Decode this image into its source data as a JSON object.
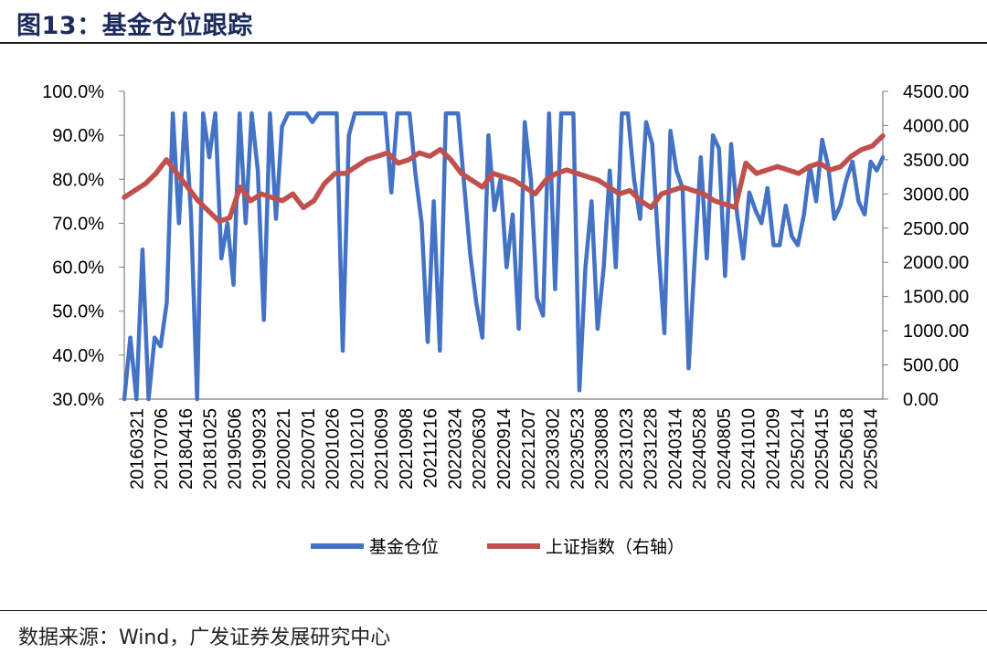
{
  "header": {
    "title": "图13：基金仓位跟踪"
  },
  "footer": {
    "source": "数据来源：Wind，广发证券发展研究中心"
  },
  "chart_data": {
    "type": "line",
    "title": "",
    "xlabel": "",
    "ylabel": "",
    "y_left": {
      "ylim": [
        0.3,
        1.0
      ],
      "ticks": [
        0.3,
        0.4,
        0.5,
        0.6,
        0.7,
        0.8,
        0.9,
        1.0
      ],
      "tick_labels": [
        "30.0%",
        "40.0%",
        "50.0%",
        "60.0%",
        "70.0%",
        "80.0%",
        "90.0%",
        "100.0%"
      ]
    },
    "y_right": {
      "ylim": [
        0,
        4500
      ],
      "ticks": [
        0,
        500,
        1000,
        1500,
        2000,
        2500,
        3000,
        3500,
        4000,
        4500
      ],
      "tick_labels": [
        "0.00",
        "500.00",
        "1000.00",
        "1500.00",
        "2000.00",
        "2500.00",
        "3000.00",
        "3500.00",
        "4000.00",
        "4500.00"
      ]
    },
    "x_tick_labels": [
      "20160321",
      "20170706",
      "20180416",
      "20181025",
      "20190506",
      "20190923",
      "20200221",
      "20200701",
      "20201026",
      "20210210",
      "20210609",
      "20210908",
      "20211216",
      "20220324",
      "20220630",
      "20220914",
      "20221207",
      "20230302",
      "20230523",
      "20230808",
      "20231023",
      "20231228",
      "20240314",
      "20240528",
      "20240805",
      "20241010",
      "20241209",
      "20250214",
      "20250415",
      "20250618",
      "20250814"
    ],
    "legend": {
      "position": "bottom",
      "entries": [
        "基金仓位",
        "上证指数（右轴）"
      ]
    },
    "colors": {
      "fund": "#4472c4",
      "index": "#c0504d"
    },
    "series": [
      {
        "name": "基金仓位",
        "axis": "left",
        "values": [
          0.3,
          0.44,
          0.3,
          0.64,
          0.3,
          0.44,
          0.42,
          0.52,
          0.95,
          0.7,
          0.95,
          0.72,
          0.3,
          0.95,
          0.85,
          0.95,
          0.62,
          0.7,
          0.56,
          0.95,
          0.7,
          0.95,
          0.82,
          0.48,
          0.95,
          0.71,
          0.92,
          0.95,
          0.95,
          0.95,
          0.95,
          0.93,
          0.95,
          0.95,
          0.95,
          0.95,
          0.41,
          0.9,
          0.95,
          0.95,
          0.95,
          0.95,
          0.95,
          0.95,
          0.77,
          0.95,
          0.95,
          0.95,
          0.81,
          0.7,
          0.43,
          0.75,
          0.41,
          0.95,
          0.95,
          0.95,
          0.79,
          0.63,
          0.52,
          0.44,
          0.9,
          0.73,
          0.8,
          0.6,
          0.72,
          0.46,
          0.93,
          0.8,
          0.53,
          0.49,
          0.95,
          0.55,
          0.95,
          0.95,
          0.95,
          0.32,
          0.6,
          0.75,
          0.46,
          0.6,
          0.82,
          0.6,
          0.95,
          0.95,
          0.8,
          0.71,
          0.93,
          0.88,
          0.65,
          0.45,
          0.91,
          0.82,
          0.78,
          0.37,
          0.62,
          0.85,
          0.62,
          0.9,
          0.87,
          0.58,
          0.88,
          0.72,
          0.62,
          0.77,
          0.73,
          0.7,
          0.78,
          0.65,
          0.65,
          0.74,
          0.67,
          0.65,
          0.72,
          0.83,
          0.75,
          0.89,
          0.83,
          0.71,
          0.74,
          0.8,
          0.84,
          0.75,
          0.72,
          0.84,
          0.82,
          0.85
        ]
      },
      {
        "name": "上证指数（右轴）",
        "axis": "right",
        "values": [
          2950,
          3050,
          3150,
          3300,
          3500,
          3300,
          3100,
          2900,
          2750,
          2600,
          2650,
          3100,
          2900,
          3000,
          2950,
          2900,
          3000,
          2800,
          2900,
          3150,
          3300,
          3300,
          3400,
          3500,
          3550,
          3600,
          3450,
          3500,
          3600,
          3550,
          3650,
          3500,
          3300,
          3200,
          3100,
          3300,
          3250,
          3200,
          3100,
          3000,
          3200,
          3300,
          3350,
          3300,
          3250,
          3200,
          3100,
          3000,
          3050,
          2900,
          2800,
          3000,
          3050,
          3100,
          3050,
          3000,
          2900,
          2850,
          2800,
          3450,
          3300,
          3350,
          3400,
          3350,
          3300,
          3400,
          3450,
          3350,
          3400,
          3550,
          3650,
          3700,
          3850
        ]
      }
    ]
  }
}
